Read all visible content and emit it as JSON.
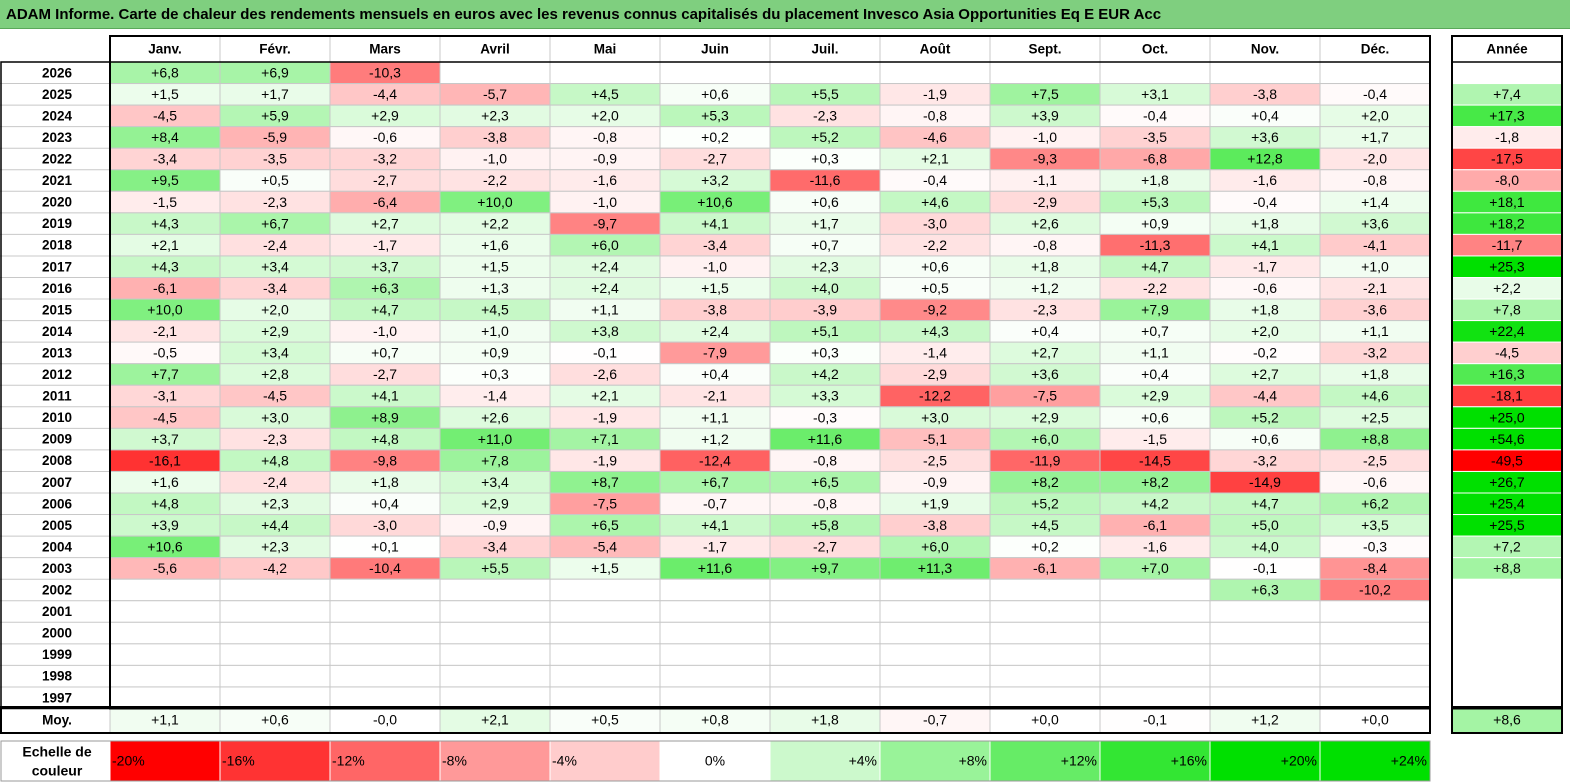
{
  "title": "ADAM Informe. Carte de chaleur des rendements mensuels en euros avec les revenus connus capitalisés du placement Invesco Asia Opportunities Eq E EUR Acc",
  "chart_data": {
    "type": "heatmap",
    "months": [
      "Janv.",
      "Févr.",
      "Mars",
      "Avril",
      "Mai",
      "Juin",
      "Juil.",
      "Août",
      "Sept.",
      "Oct.",
      "Nov.",
      "Déc."
    ],
    "year_header": "Année",
    "avg_label": "Moy.",
    "scale_label": "Echelle de couleur",
    "rows": [
      {
        "year": "2026",
        "months": [
          "+6,8",
          "+6,9",
          "-10,3",
          "",
          "",
          "",
          "",
          "",
          "",
          "",
          "",
          ""
        ],
        "annual": ""
      },
      {
        "year": "2025",
        "months": [
          "+1,5",
          "+1,7",
          "-4,4",
          "-5,7",
          "+4,5",
          "+0,6",
          "+5,5",
          "-1,9",
          "+7,5",
          "+3,1",
          "-3,8",
          "-0,4"
        ],
        "annual": "+7,4"
      },
      {
        "year": "2024",
        "months": [
          "-4,5",
          "+5,9",
          "+2,9",
          "+2,3",
          "+2,0",
          "+5,3",
          "-2,3",
          "-0,8",
          "+3,9",
          "-0,4",
          "+0,4",
          "+2,0"
        ],
        "annual": "+17,3"
      },
      {
        "year": "2023",
        "months": [
          "+8,4",
          "-5,9",
          "-0,6",
          "-3,8",
          "-0,8",
          "+0,2",
          "+5,2",
          "-4,6",
          "-1,0",
          "-3,5",
          "+3,6",
          "+1,7"
        ],
        "annual": "-1,8"
      },
      {
        "year": "2022",
        "months": [
          "-3,4",
          "-3,5",
          "-3,2",
          "-1,0",
          "-0,9",
          "-2,7",
          "+0,3",
          "+2,1",
          "-9,3",
          "-6,8",
          "+12,8",
          "-2,0"
        ],
        "annual": "-17,5"
      },
      {
        "year": "2021",
        "months": [
          "+9,5",
          "+0,5",
          "-2,7",
          "-2,2",
          "-1,6",
          "+3,2",
          "-11,6",
          "-0,4",
          "-1,1",
          "+1,8",
          "-1,6",
          "-0,8"
        ],
        "annual": "-8,0"
      },
      {
        "year": "2020",
        "months": [
          "-1,5",
          "-2,3",
          "-6,4",
          "+10,0",
          "-1,0",
          "+10,6",
          "+0,6",
          "+4,6",
          "-2,9",
          "+5,3",
          "-0,4",
          "+1,4"
        ],
        "annual": "+18,1"
      },
      {
        "year": "2019",
        "months": [
          "+4,3",
          "+6,7",
          "+2,7",
          "+2,2",
          "-9,7",
          "+4,1",
          "+1,7",
          "-3,0",
          "+2,6",
          "+0,9",
          "+1,8",
          "+3,6"
        ],
        "annual": "+18,2"
      },
      {
        "year": "2018",
        "months": [
          "+2,1",
          "-2,4",
          "-1,7",
          "+1,6",
          "+6,0",
          "-3,4",
          "+0,7",
          "-2,2",
          "-0,8",
          "-11,3",
          "+4,1",
          "-4,1"
        ],
        "annual": "-11,7"
      },
      {
        "year": "2017",
        "months": [
          "+4,3",
          "+3,4",
          "+3,7",
          "+1,5",
          "+2,4",
          "-1,0",
          "+2,3",
          "+0,6",
          "+1,8",
          "+4,7",
          "-1,7",
          "+1,0"
        ],
        "annual": "+25,3"
      },
      {
        "year": "2016",
        "months": [
          "-6,1",
          "-3,4",
          "+6,3",
          "+1,3",
          "+2,4",
          "+1,5",
          "+4,0",
          "+0,5",
          "+1,2",
          "-2,2",
          "-0,6",
          "-2,1"
        ],
        "annual": "+2,2"
      },
      {
        "year": "2015",
        "months": [
          "+10,0",
          "+2,0",
          "+4,7",
          "+4,5",
          "+1,1",
          "-3,8",
          "-3,9",
          "-9,2",
          "-2,3",
          "+7,9",
          "+1,8",
          "-3,6"
        ],
        "annual": "+7,8"
      },
      {
        "year": "2014",
        "months": [
          "-2,1",
          "+2,9",
          "-1,0",
          "+1,0",
          "+3,8",
          "+2,4",
          "+5,1",
          "+4,3",
          "+0,4",
          "+0,7",
          "+2,0",
          "+1,1"
        ],
        "annual": "+22,4"
      },
      {
        "year": "2013",
        "months": [
          "-0,5",
          "+3,4",
          "+0,7",
          "+0,9",
          "-0,1",
          "-7,9",
          "+0,3",
          "-1,4",
          "+2,7",
          "+1,1",
          "-0,2",
          "-3,2"
        ],
        "annual": "-4,5"
      },
      {
        "year": "2012",
        "months": [
          "+7,7",
          "+2,8",
          "-2,7",
          "+0,3",
          "-2,6",
          "+0,4",
          "+4,2",
          "-2,9",
          "+3,6",
          "+0,4",
          "+2,7",
          "+1,8"
        ],
        "annual": "+16,3"
      },
      {
        "year": "2011",
        "months": [
          "-3,1",
          "-4,5",
          "+4,1",
          "-1,4",
          "+2,1",
          "-2,1",
          "+3,3",
          "-12,2",
          "-7,5",
          "+2,9",
          "-4,4",
          "+4,6"
        ],
        "annual": "-18,1"
      },
      {
        "year": "2010",
        "months": [
          "-4,5",
          "+3,0",
          "+8,9",
          "+2,6",
          "-1,9",
          "+1,1",
          "-0,3",
          "+3,0",
          "+2,9",
          "+0,6",
          "+5,2",
          "+2,5"
        ],
        "annual": "+25,0"
      },
      {
        "year": "2009",
        "months": [
          "+3,7",
          "-2,3",
          "+4,8",
          "+11,0",
          "+7,1",
          "+1,2",
          "+11,6",
          "-5,1",
          "+6,0",
          "-1,5",
          "+0,6",
          "+8,8"
        ],
        "annual": "+54,6"
      },
      {
        "year": "2008",
        "months": [
          "-16,1",
          "+4,8",
          "-9,8",
          "+7,8",
          "-1,9",
          "-12,4",
          "-0,8",
          "-2,5",
          "-11,9",
          "-14,5",
          "-3,2",
          "-2,5"
        ],
        "annual": "-49,5"
      },
      {
        "year": "2007",
        "months": [
          "+1,6",
          "-2,4",
          "+1,8",
          "+3,4",
          "+8,7",
          "+6,7",
          "+6,5",
          "-0,9",
          "+8,2",
          "+8,2",
          "-14,9",
          "-0,6"
        ],
        "annual": "+26,7"
      },
      {
        "year": "2006",
        "months": [
          "+4,8",
          "+2,3",
          "+0,4",
          "+2,9",
          "-7,5",
          "-0,7",
          "-0,8",
          "+1,9",
          "+5,2",
          "+4,2",
          "+4,7",
          "+6,2"
        ],
        "annual": "+25,4"
      },
      {
        "year": "2005",
        "months": [
          "+3,9",
          "+4,4",
          "-3,0",
          "-0,9",
          "+6,5",
          "+4,1",
          "+5,8",
          "-3,8",
          "+4,5",
          "-6,1",
          "+5,0",
          "+3,5"
        ],
        "annual": "+25,5"
      },
      {
        "year": "2004",
        "months": [
          "+10,6",
          "+2,3",
          "+0,1",
          "-3,4",
          "-5,4",
          "-1,7",
          "-2,7",
          "+6,0",
          "+0,2",
          "-1,6",
          "+4,0",
          "-0,3"
        ],
        "annual": "+7,2"
      },
      {
        "year": "2003",
        "months": [
          "-5,6",
          "-4,2",
          "-10,4",
          "+5,5",
          "+1,5",
          "+11,6",
          "+9,7",
          "+11,3",
          "-6,1",
          "+7,0",
          "-0,1",
          "-8,4"
        ],
        "annual": "+8,8"
      },
      {
        "year": "2002",
        "months": [
          "",
          "",
          "",
          "",
          "",
          "",
          "",
          "",
          "",
          "",
          "+6,3",
          "-10,2"
        ],
        "annual": ""
      },
      {
        "year": "2001",
        "months": [
          "",
          "",
          "",
          "",
          "",
          "",
          "",
          "",
          "",
          "",
          "",
          ""
        ],
        "annual": ""
      },
      {
        "year": "2000",
        "months": [
          "",
          "",
          "",
          "",
          "",
          "",
          "",
          "",
          "",
          "",
          "",
          ""
        ],
        "annual": ""
      },
      {
        "year": "1999",
        "months": [
          "",
          "",
          "",
          "",
          "",
          "",
          "",
          "",
          "",
          "",
          "",
          ""
        ],
        "annual": ""
      },
      {
        "year": "1998",
        "months": [
          "",
          "",
          "",
          "",
          "",
          "",
          "",
          "",
          "",
          "",
          "",
          ""
        ],
        "annual": ""
      },
      {
        "year": "1997",
        "months": [
          "",
          "",
          "",
          "",
          "",
          "",
          "",
          "",
          "",
          "",
          "",
          ""
        ],
        "annual": ""
      }
    ],
    "average": {
      "months": [
        "+1,1",
        "+0,6",
        "-0,0",
        "+2,1",
        "+0,5",
        "+0,8",
        "+1,8",
        "-0,7",
        "+0,0",
        "-0,1",
        "+1,2",
        "+0,0"
      ],
      "annual": "+8,6"
    },
    "scale": [
      {
        "label": "-20%",
        "value": -20
      },
      {
        "label": "-16%",
        "value": -16
      },
      {
        "label": "-12%",
        "value": -12
      },
      {
        "label": "-8%",
        "value": -8
      },
      {
        "label": "-4%",
        "value": -4
      },
      {
        "label": "0%",
        "value": 0
      },
      {
        "label": "+4%",
        "value": 4
      },
      {
        "label": "+8%",
        "value": 8
      },
      {
        "label": "+12%",
        "value": 12
      },
      {
        "label": "+16%",
        "value": 16
      },
      {
        "label": "+20%",
        "value": 20
      },
      {
        "label": "+24%",
        "value": 24
      }
    ],
    "colors": {
      "negative": "#ff0000",
      "neutral": "#ffffff",
      "positive": "#00e000",
      "border": "#000000",
      "grid": "#c8c8c8"
    }
  }
}
